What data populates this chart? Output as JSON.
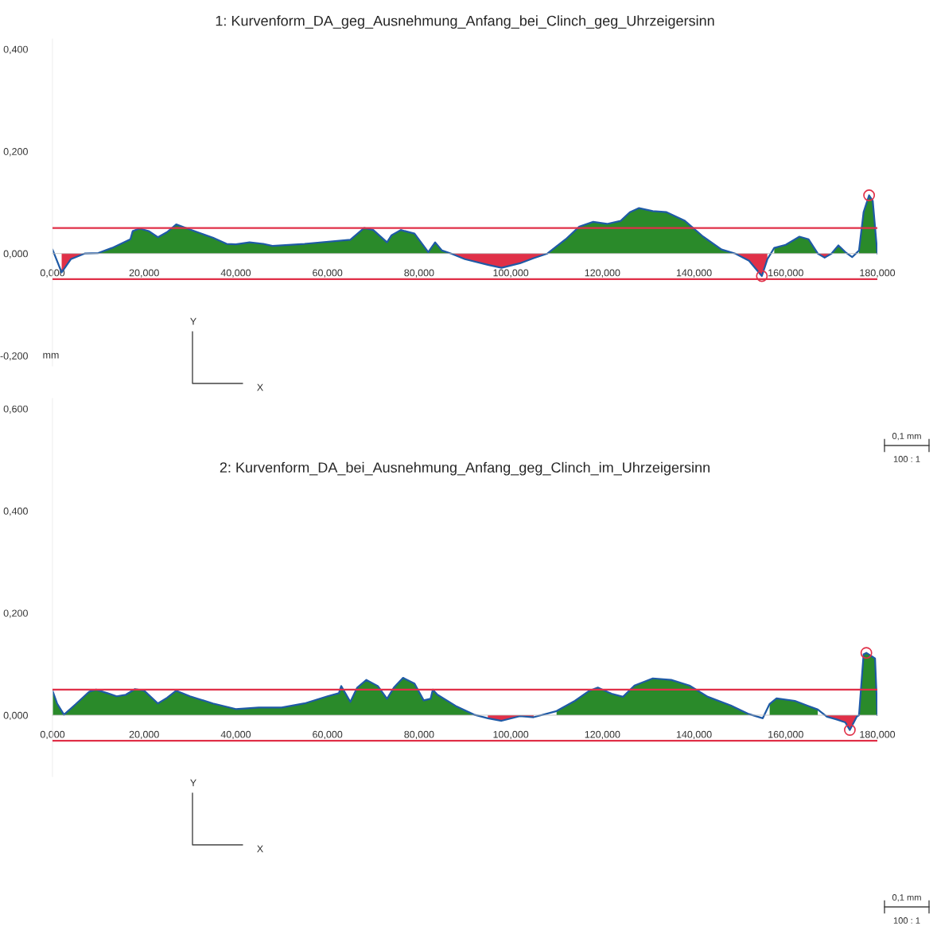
{
  "chart_data": [
    {
      "type": "area",
      "title": "1: Kurvenform_DA_geg_Ausnehmung_Anfang_bei_Clinch_geg_Uhrzeigersinn",
      "ylabel": "mm",
      "xlim": [
        0,
        180
      ],
      "ylim": [
        -0.22,
        0.42
      ],
      "xticks": [
        {
          "value": 0,
          "label": "0,000"
        },
        {
          "value": 20,
          "label": "20,000"
        },
        {
          "value": 40,
          "label": "40,000"
        },
        {
          "value": 60,
          "label": "60,000"
        },
        {
          "value": 80,
          "label": "80,000"
        },
        {
          "value": 100,
          "label": "100,000"
        },
        {
          "value": 120,
          "label": "120,000"
        },
        {
          "value": 140,
          "label": "140,000"
        },
        {
          "value": 160,
          "label": "160,000"
        },
        {
          "value": 180,
          "label": "180,000"
        }
      ],
      "yticks": [
        {
          "value": -0.2,
          "label": "-0,200"
        },
        {
          "value": 0,
          "label": "0,000"
        },
        {
          "value": 0.2,
          "label": "0,200"
        },
        {
          "value": 0.4,
          "label": "0,400"
        }
      ],
      "series": [
        {
          "type": "area",
          "color": "#2a8a2a",
          "x": [
            7,
            10,
            13,
            17,
            17.5,
            19,
            21,
            23,
            25,
            27,
            30,
            35,
            38,
            40,
            43,
            46,
            48,
            55,
            65,
            68,
            70,
            73,
            74,
            76,
            79,
            82,
            83.5,
            85,
            87
          ],
          "values": [
            0,
            0.001,
            0.011,
            0.028,
            0.044,
            0.049,
            0.044,
            0.032,
            0.042,
            0.057,
            0.047,
            0.031,
            0.019,
            0.018,
            0.022,
            0.019,
            0.015,
            0.019,
            0.027,
            0.05,
            0.046,
            0.022,
            0.036,
            0.046,
            0.039,
            0.003,
            0.022,
            0.006,
            0
          ]
        },
        {
          "type": "area",
          "color": "#2a8a2a",
          "x": [
            108,
            112,
            115,
            118,
            121,
            124,
            126,
            128,
            131,
            134,
            138,
            142,
            146,
            149
          ],
          "values": [
            0,
            0.028,
            0.053,
            0.062,
            0.058,
            0.064,
            0.081,
            0.089,
            0.083,
            0.081,
            0.064,
            0.033,
            0.008,
            0
          ]
        },
        {
          "type": "area",
          "color": "#2a8a2a",
          "x": [
            157.5,
            160,
            163,
            165,
            167
          ],
          "values": [
            0.011,
            0.017,
            0.033,
            0.028,
            0
          ]
        },
        {
          "type": "area",
          "color": "#2a8a2a",
          "x": [
            170,
            171.5,
            173
          ],
          "values": [
            0,
            0.016,
            0.003
          ]
        },
        {
          "type": "area",
          "color": "#2a8a2a",
          "x": [
            176,
            177,
            178.2,
            179,
            180
          ],
          "values": [
            0.006,
            0.081,
            0.114,
            0.103,
            0
          ]
        },
        {
          "type": "area",
          "color": "#e03048",
          "x": [
            2,
            4,
            7
          ],
          "values": [
            -0.037,
            -0.011,
            0
          ]
        },
        {
          "type": "area",
          "color": "#e03048",
          "x": [
            87,
            90,
            95,
            98,
            102,
            105,
            108
          ],
          "values": [
            0,
            -0.011,
            -0.022,
            -0.028,
            -0.019,
            -0.009,
            0
          ]
        },
        {
          "type": "area",
          "color": "#e03048",
          "x": [
            149,
            152,
            154.8,
            156
          ],
          "values": [
            0,
            -0.014,
            -0.044,
            -0.011
          ]
        },
        {
          "type": "area",
          "color": "#e03048",
          "x": [
            167,
            168.5,
            170
          ],
          "values": [
            0,
            -0.008,
            0
          ]
        },
        {
          "type": "line",
          "color": "#1f5aa6",
          "x": [
            0,
            2,
            4,
            7,
            10,
            13,
            17,
            17.5,
            19,
            21,
            23,
            25,
            27,
            30,
            35,
            38,
            40,
            43,
            46,
            48,
            55,
            65,
            68,
            70,
            73,
            74,
            76,
            79,
            82,
            83.5,
            85,
            87,
            90,
            95,
            98,
            102,
            105,
            108,
            112,
            115,
            118,
            121,
            124,
            126,
            128,
            131,
            134,
            138,
            142,
            146,
            149,
            152,
            154.8,
            156,
            157.5,
            160,
            163,
            165,
            167,
            168.5,
            170,
            171.5,
            173,
            174.5,
            176,
            177,
            178.2,
            179,
            180
          ],
          "values": [
            0.008,
            -0.037,
            -0.011,
            0,
            0.001,
            0.011,
            0.028,
            0.044,
            0.049,
            0.044,
            0.032,
            0.042,
            0.057,
            0.047,
            0.031,
            0.019,
            0.018,
            0.022,
            0.019,
            0.015,
            0.019,
            0.027,
            0.05,
            0.046,
            0.022,
            0.036,
            0.046,
            0.039,
            0.003,
            0.022,
            0.006,
            0,
            -0.011,
            -0.022,
            -0.028,
            -0.019,
            -0.009,
            0,
            0.028,
            0.053,
            0.062,
            0.058,
            0.064,
            0.081,
            0.089,
            0.083,
            0.081,
            0.064,
            0.033,
            0.008,
            0,
            -0.014,
            -0.044,
            -0.011,
            0.011,
            0.017,
            0.033,
            0.028,
            0,
            -0.008,
            0,
            0.016,
            0.003,
            -0.007,
            0.006,
            0.081,
            0.114,
            0.103,
            0
          ]
        },
        {
          "type": "scatter",
          "color": "#e03048",
          "marker": "circle",
          "x": [
            178.2,
            154.8
          ],
          "values": [
            0.114,
            -0.044
          ]
        }
      ],
      "ref_lines": [
        {
          "axis": "y",
          "value": 0.05,
          "color": "#e03048"
        },
        {
          "axis": "y",
          "value": -0.05,
          "color": "#e03048"
        }
      ],
      "annotations": [
        "Y",
        "X",
        "0,1 mm",
        "100 : 1"
      ]
    },
    {
      "type": "area",
      "title": "2: Kurvenform_DA_bei_Ausnehmung_Anfang_geg_Clinch_im_Uhrzeigersinn",
      "xlim": [
        0,
        180
      ],
      "ylim": [
        -0.12,
        0.62
      ],
      "xticks": [
        {
          "value": 0,
          "label": "0,000"
        },
        {
          "value": 20,
          "label": "20,000"
        },
        {
          "value": 40,
          "label": "40,000"
        },
        {
          "value": 60,
          "label": "60,000"
        },
        {
          "value": 80,
          "label": "80,000"
        },
        {
          "value": 100,
          "label": "100,000"
        },
        {
          "value": 120,
          "label": "120,000"
        },
        {
          "value": 140,
          "label": "140,000"
        },
        {
          "value": 160,
          "label": "160,000"
        },
        {
          "value": 180,
          "label": "180,000"
        }
      ],
      "yticks": [
        {
          "value": 0,
          "label": "0,000"
        },
        {
          "value": 0.2,
          "label": "0,200"
        },
        {
          "value": 0.4,
          "label": "0,400"
        },
        {
          "value": 0.6,
          "label": "0,600"
        }
      ],
      "series": [
        {
          "type": "area",
          "color": "#2a8a2a",
          "x": [
            0,
            1,
            2.5,
            5,
            8,
            9.5,
            12,
            14,
            16,
            18,
            20,
            23,
            25,
            27,
            30,
            35,
            40,
            45,
            50,
            55,
            60,
            62.5,
            63,
            65,
            66.5,
            68.5,
            71,
            73,
            74.5,
            76.5,
            79,
            81,
            82.5,
            83,
            84,
            88,
            92
          ],
          "values": [
            0.048,
            0.023,
            0.001,
            0.021,
            0.046,
            0.05,
            0.043,
            0.037,
            0.04,
            0.051,
            0.048,
            0.023,
            0.034,
            0.048,
            0.037,
            0.023,
            0.012,
            0.015,
            0.015,
            0.023,
            0.037,
            0.043,
            0.057,
            0.026,
            0.054,
            0.069,
            0.057,
            0.032,
            0.054,
            0.073,
            0.062,
            0.029,
            0.032,
            0.05,
            0.04,
            0.018,
            0.001
          ]
        },
        {
          "type": "area",
          "color": "#2a8a2a",
          "x": [
            110,
            114,
            117,
            119,
            122,
            124.5,
            127,
            131,
            135,
            139,
            143,
            148,
            152
          ],
          "values": [
            0.008,
            0.028,
            0.047,
            0.054,
            0.042,
            0.036,
            0.058,
            0.072,
            0.069,
            0.058,
            0.036,
            0.019,
            0.002
          ]
        },
        {
          "type": "area",
          "color": "#2a8a2a",
          "x": [
            156.5,
            158,
            162,
            167
          ],
          "values": [
            0.022,
            0.033,
            0.028,
            0.011
          ]
        },
        {
          "type": "area",
          "color": "#2a8a2a",
          "x": [
            176,
            177,
            177.6,
            178.5,
            179.5,
            180
          ],
          "values": [
            0,
            0.119,
            0.122,
            0.117,
            0.111,
            0
          ]
        },
        {
          "type": "area",
          "color": "#e03048",
          "x": [
            95,
            98,
            102,
            105
          ],
          "values": [
            -0.006,
            -0.011,
            -0.002,
            -0.004
          ]
        },
        {
          "type": "area",
          "color": "#e03048",
          "x": [
            169,
            171,
            173,
            174,
            175.5,
            176
          ],
          "values": [
            -0.003,
            -0.008,
            -0.014,
            -0.029,
            -0.003,
            0
          ]
        },
        {
          "type": "line",
          "color": "#1f5aa6",
          "x": [
            0,
            1,
            2.5,
            5,
            8,
            9.5,
            12,
            14,
            16,
            18,
            20,
            23,
            25,
            27,
            30,
            35,
            40,
            45,
            50,
            55,
            60,
            62.5,
            63,
            65,
            66.5,
            68.5,
            71,
            73,
            74.5,
            76.5,
            79,
            81,
            82.5,
            83,
            84,
            88,
            92,
            95,
            98,
            102,
            105,
            110,
            114,
            117,
            119,
            122,
            124.5,
            127,
            131,
            135,
            139,
            143,
            148,
            152,
            155,
            156.5,
            158,
            162,
            167,
            169,
            171,
            173,
            174,
            175.5,
            176,
            177,
            177.6,
            178.5,
            179.5,
            180
          ],
          "values": [
            0.048,
            0.023,
            0.001,
            0.021,
            0.046,
            0.05,
            0.043,
            0.037,
            0.04,
            0.051,
            0.048,
            0.023,
            0.034,
            0.048,
            0.037,
            0.023,
            0.012,
            0.015,
            0.015,
            0.023,
            0.037,
            0.043,
            0.057,
            0.026,
            0.054,
            0.069,
            0.057,
            0.032,
            0.054,
            0.073,
            0.062,
            0.029,
            0.032,
            0.05,
            0.04,
            0.018,
            0.001,
            -0.006,
            -0.011,
            -0.002,
            -0.004,
            0.008,
            0.028,
            0.047,
            0.054,
            0.042,
            0.036,
            0.058,
            0.072,
            0.069,
            0.058,
            0.036,
            0.019,
            0.002,
            -0.006,
            0.022,
            0.033,
            0.028,
            0.011,
            -0.003,
            -0.008,
            -0.014,
            -0.029,
            -0.003,
            0,
            0.119,
            0.122,
            0.117,
            0.111,
            0
          ]
        },
        {
          "type": "scatter",
          "color": "#e03048",
          "marker": "circle",
          "x": [
            177.6,
            174
          ],
          "values": [
            0.122,
            -0.029
          ]
        }
      ],
      "ref_lines": [
        {
          "axis": "y",
          "value": 0.05,
          "color": "#e03048"
        },
        {
          "axis": "y",
          "value": -0.05,
          "color": "#e03048"
        }
      ],
      "annotations": [
        "Y",
        "X",
        "0,1 mm",
        "100 : 1"
      ]
    }
  ]
}
